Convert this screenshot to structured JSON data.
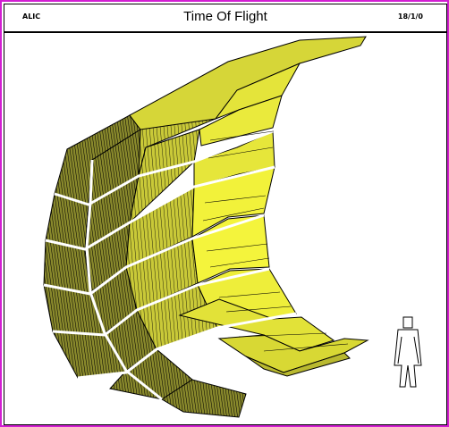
{
  "header": {
    "left_label": "ALIC",
    "title": "Time Of Flight",
    "right_label": "18/1/0"
  },
  "colors": {
    "border": "#d21fd2",
    "module_light": "#f2f23a",
    "module_mid": "#c8c836",
    "module_dark": "#6e6e28",
    "outline": "#000000"
  },
  "icons": {
    "figure": "human-scale-figure-icon"
  }
}
